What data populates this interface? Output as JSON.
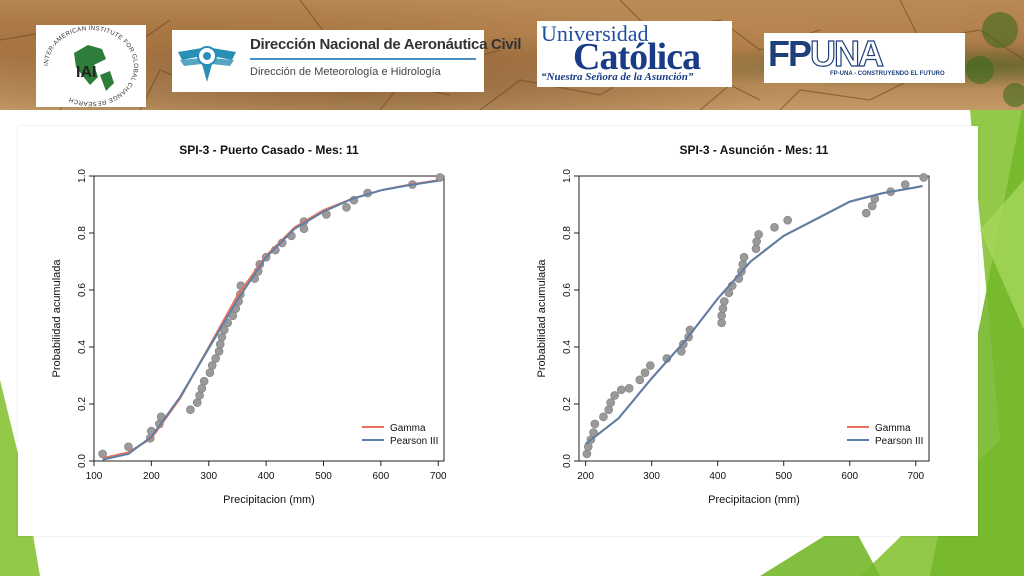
{
  "logos": {
    "iai": {
      "name": "IAI",
      "arc_text": "INTER-AMERICAN INSTITUTE FOR GLOBAL CHANGE RESEARCH"
    },
    "dinac": {
      "title": "Dirección Nacional de Aeronáutica Civil",
      "subtitle": "Dirección de Meteorología e Hidrología"
    },
    "uc": {
      "top": "Universidad",
      "main": "Católica",
      "tagline": "“Nuestra Señora de la Asunción”"
    },
    "fpuna": {
      "fp": "FP",
      "una": "UNA",
      "tagline": "FP-UNA - CONSTRUYENDO EL FUTURO"
    }
  },
  "colors": {
    "gamma": "#e8735a",
    "pearson": "#5b7fa8",
    "points": "#9a9a9a",
    "accent_green": "#8cc63f"
  },
  "chart_data": [
    {
      "type": "scatter",
      "title": "SPI-3 -  Puerto Casado  - Mes: 11",
      "xlabel": "Precipitacion (mm)",
      "ylabel": "Probabilidad acumulada",
      "xlim": [
        100,
        710
      ],
      "ylim": [
        0,
        1
      ],
      "x_ticks": [
        100,
        200,
        300,
        400,
        500,
        600,
        700
      ],
      "y_ticks": [
        0.0,
        0.2,
        0.4,
        0.6,
        0.8,
        1.0
      ],
      "legend_position": "bottom-right",
      "points": [
        [
          115,
          0.025
        ],
        [
          160,
          0.05
        ],
        [
          198,
          0.08
        ],
        [
          200,
          0.105
        ],
        [
          214,
          0.13
        ],
        [
          217,
          0.155
        ],
        [
          268,
          0.18
        ],
        [
          280,
          0.205
        ],
        [
          284,
          0.23
        ],
        [
          288,
          0.255
        ],
        [
          292,
          0.28
        ],
        [
          302,
          0.31
        ],
        [
          306,
          0.335
        ],
        [
          312,
          0.36
        ],
        [
          318,
          0.385
        ],
        [
          320,
          0.41
        ],
        [
          323,
          0.435
        ],
        [
          327,
          0.46
        ],
        [
          333,
          0.485
        ],
        [
          342,
          0.51
        ],
        [
          347,
          0.535
        ],
        [
          352,
          0.56
        ],
        [
          355,
          0.585
        ],
        [
          356,
          0.615
        ],
        [
          380,
          0.64
        ],
        [
          386,
          0.665
        ],
        [
          389,
          0.69
        ],
        [
          400,
          0.715
        ],
        [
          416,
          0.74
        ],
        [
          428,
          0.765
        ],
        [
          444,
          0.79
        ],
        [
          466,
          0.815
        ],
        [
          466,
          0.84
        ],
        [
          505,
          0.865
        ],
        [
          540,
          0.89
        ],
        [
          553,
          0.915
        ],
        [
          577,
          0.94
        ],
        [
          655,
          0.97
        ],
        [
          703,
          0.995
        ]
      ],
      "series": [
        {
          "name": "Gamma",
          "x": [
            115,
            160,
            200,
            250,
            300,
            350,
            400,
            450,
            500,
            550,
            600,
            650,
            700
          ],
          "values": [
            0.01,
            0.03,
            0.08,
            0.22,
            0.4,
            0.58,
            0.72,
            0.82,
            0.88,
            0.92,
            0.95,
            0.97,
            0.985
          ]
        },
        {
          "name": "Pearson III",
          "x": [
            115,
            160,
            200,
            250,
            300,
            350,
            400,
            450,
            500,
            550,
            600,
            650,
            700
          ],
          "values": [
            0.005,
            0.025,
            0.085,
            0.225,
            0.395,
            0.565,
            0.715,
            0.815,
            0.875,
            0.92,
            0.95,
            0.968,
            0.983
          ]
        }
      ]
    },
    {
      "type": "scatter",
      "title": "SPI-3 -  Asunción  - Mes: 11",
      "xlabel": "Precipitacion (mm)",
      "ylabel": "Probabilidad acumulada",
      "xlim": [
        190,
        720
      ],
      "ylim": [
        0,
        1
      ],
      "x_ticks": [
        200,
        300,
        400,
        500,
        600,
        700
      ],
      "y_ticks": [
        0.0,
        0.2,
        0.4,
        0.6,
        0.8,
        1.0
      ],
      "legend_position": "bottom-right",
      "points": [
        [
          202,
          0.025
        ],
        [
          204,
          0.05
        ],
        [
          208,
          0.075
        ],
        [
          212,
          0.1
        ],
        [
          214,
          0.13
        ],
        [
          227,
          0.155
        ],
        [
          235,
          0.18
        ],
        [
          238,
          0.205
        ],
        [
          244,
          0.23
        ],
        [
          254,
          0.25
        ],
        [
          266,
          0.255
        ],
        [
          282,
          0.285
        ],
        [
          290,
          0.31
        ],
        [
          298,
          0.335
        ],
        [
          323,
          0.36
        ],
        [
          345,
          0.385
        ],
        [
          348,
          0.41
        ],
        [
          356,
          0.435
        ],
        [
          358,
          0.46
        ],
        [
          406,
          0.485
        ],
        [
          406,
          0.51
        ],
        [
          408,
          0.535
        ],
        [
          410,
          0.56
        ],
        [
          417,
          0.59
        ],
        [
          422,
          0.615
        ],
        [
          432,
          0.64
        ],
        [
          436,
          0.665
        ],
        [
          438,
          0.69
        ],
        [
          440,
          0.715
        ],
        [
          458,
          0.745
        ],
        [
          459,
          0.77
        ],
        [
          462,
          0.795
        ],
        [
          486,
          0.82
        ],
        [
          506,
          0.845
        ],
        [
          625,
          0.87
        ],
        [
          634,
          0.895
        ],
        [
          638,
          0.92
        ],
        [
          662,
          0.945
        ],
        [
          684,
          0.97
        ],
        [
          712,
          0.995
        ]
      ],
      "series": [
        {
          "name": "Gamma",
          "x": [
            200,
            250,
            300,
            350,
            400,
            450,
            500,
            550,
            600,
            650,
            700,
            710
          ],
          "values": [
            0.06,
            0.15,
            0.29,
            0.42,
            0.57,
            0.7,
            0.79,
            0.85,
            0.91,
            0.94,
            0.96,
            0.965
          ]
        },
        {
          "name": "Pearson III",
          "x": [
            200,
            250,
            300,
            350,
            400,
            450,
            500,
            550,
            600,
            650,
            700,
            710
          ],
          "values": [
            0.06,
            0.15,
            0.29,
            0.42,
            0.57,
            0.7,
            0.79,
            0.85,
            0.91,
            0.94,
            0.96,
            0.965
          ]
        }
      ]
    }
  ]
}
